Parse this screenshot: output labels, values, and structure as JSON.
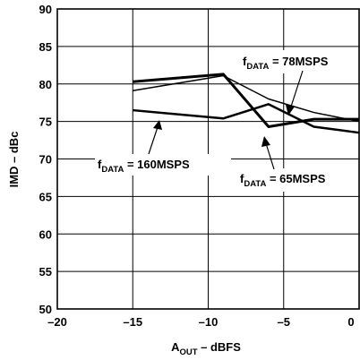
{
  "chart_data": {
    "type": "line",
    "xlabel": "A",
    "xlabel_sub": "OUT",
    "xlabel_rest": " – dBFS",
    "ylabel": "IMD – dBc",
    "xlim": [
      -20,
      0
    ],
    "ylim": [
      50,
      90
    ],
    "x_ticks": [
      -20,
      -15,
      -10,
      -5,
      0
    ],
    "x_tick_labels": [
      "–20",
      "–15",
      "–10",
      "–5",
      "0"
    ],
    "y_ticks": [
      50,
      55,
      60,
      65,
      70,
      75,
      80,
      85,
      90
    ],
    "y_tick_labels": [
      "50",
      "55",
      "60",
      "65",
      "70",
      "75",
      "80",
      "85",
      "90"
    ],
    "grid": true,
    "series": [
      {
        "name": "fDATA = 65MSPS",
        "label_main": "f",
        "label_sub": "DATA",
        "label_rest": " = 65MSPS",
        "x": [
          -15,
          -9,
          -6,
          -3,
          0
        ],
        "y": [
          80.3,
          81.3,
          74.3,
          75.3,
          75.3
        ]
      },
      {
        "name": "fDATA = 78MSPS",
        "label_main": "f",
        "label_sub": "DATA",
        "label_rest": " = 78MSPS",
        "x": [
          -15,
          -9,
          -6,
          -3,
          0
        ],
        "y": [
          79.1,
          81.1,
          78.0,
          76.2,
          75.0
        ]
      },
      {
        "name": "fDATA = 160MSPS",
        "label_main": "f",
        "label_sub": "DATA",
        "label_rest": " = 160MSPS",
        "x": [
          -15,
          -9,
          -6,
          -3,
          0
        ],
        "y": [
          76.5,
          75.4,
          77.3,
          74.3,
          73.5
        ]
      }
    ]
  }
}
